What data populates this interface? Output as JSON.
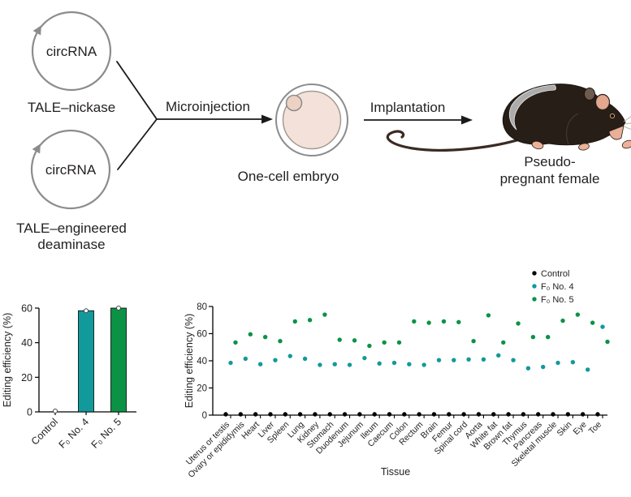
{
  "diagram": {
    "plasmid1_text": "circRNA",
    "plasmid2_text": "circRNA",
    "construct1_label": "TALE–nickase",
    "construct2_label_line1": "TALE–engineered",
    "construct2_label_line2": "deaminase",
    "step1_label": "Microinjection",
    "embryo_label": "One-cell embryo",
    "step2_label": "Implantation",
    "recipient_label_line1": "Pseudo-",
    "recipient_label_line2": "pregnant female"
  },
  "colors": {
    "teal": "#12999B",
    "green": "#0C9245",
    "control_black": "#000000",
    "text": "#231F20",
    "diagram_gray": "#8C8C8C",
    "embryo_fill": "#F4E2DA",
    "polar_body_fill": "#EDD1C3"
  },
  "chart_data": [
    {
      "type": "bar",
      "title": "",
      "categories": [
        "Control",
        "F₀ No. 4",
        "F₀ No. 5"
      ],
      "values": [
        0,
        58.5,
        60
      ],
      "bar_colors": [
        "#000000",
        "#12999B",
        "#0C9245"
      ],
      "xlabel": "",
      "ylabel": "Editing efficiency (%)",
      "ylim": [
        0,
        60
      ],
      "yticks": [
        0,
        20,
        40,
        60
      ],
      "marker": "open circle at bar top",
      "grid": "off"
    },
    {
      "type": "scatter",
      "title": "",
      "xlabel": "Tissue",
      "ylabel": "Editing efficiency (%)",
      "ylim": [
        0,
        80
      ],
      "yticks": [
        0,
        20,
        40,
        60,
        80
      ],
      "grid": "off",
      "legend_position": "top-right",
      "categories": [
        "Uterus or testis",
        "Ovary or epididymis",
        "Heart",
        "Liver",
        "Spleen",
        "Lung",
        "Kidney",
        "Stomach",
        "Duodenum",
        "Jejunum",
        "Ileum",
        "Caecum",
        "Colon",
        "Rectum",
        "Brain",
        "Femur",
        "Spinal cord",
        "Aorta",
        "White fat",
        "Brown fat",
        "Thymus",
        "Pancreas",
        "Skeletal muscle",
        "Skin",
        "Eye",
        "Toe"
      ],
      "series": [
        {
          "name": "Control",
          "color": "#000000",
          "values": [
            0,
            0,
            0,
            0,
            0,
            0,
            0,
            0,
            0,
            0,
            0,
            0,
            0,
            0,
            0,
            0,
            0,
            0,
            0,
            0,
            0,
            0,
            0,
            0,
            0,
            0
          ]
        },
        {
          "name": "F₀ No. 4",
          "color": "#12999B",
          "values": [
            38.5,
            41.5,
            37.5,
            40.5,
            43.5,
            41.5,
            37,
            37.5,
            37,
            42,
            38,
            38.5,
            37.5,
            37,
            40.5,
            40.5,
            41,
            41,
            44,
            40.5,
            34.5,
            35.5,
            38.5,
            39,
            33.5,
            65
          ]
        },
        {
          "name": "F₀ No. 5",
          "color": "#0C9245",
          "values": [
            53.5,
            59.5,
            57.5,
            54.5,
            69,
            70,
            74,
            55.5,
            55,
            51,
            53.5,
            53.5,
            69,
            68,
            69,
            68.5,
            54.5,
            73.5,
            53.5,
            67.5,
            57.5,
            57.5,
            69.5,
            74,
            68,
            54
          ]
        }
      ]
    }
  ]
}
